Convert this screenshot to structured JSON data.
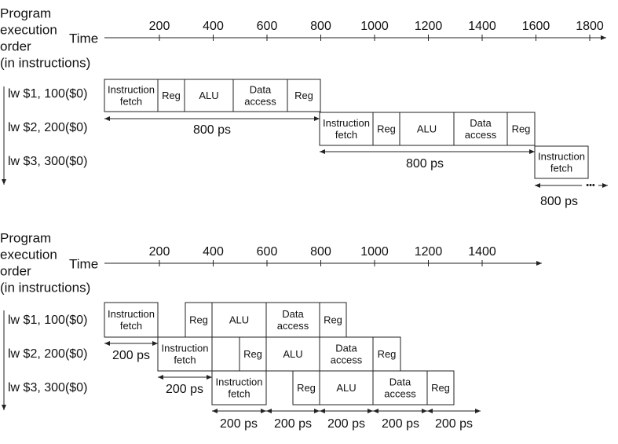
{
  "diagram_top": {
    "header_lines": [
      "Program",
      "execution",
      "order",
      "(in instructions)"
    ],
    "time_label": "Time",
    "tick_labels": [
      "200",
      "400",
      "600",
      "800",
      "1000",
      "1200",
      "1400",
      "1600",
      "1800"
    ],
    "instructions": [
      "lw  $1, 100($0)",
      "lw  $2, 200($0)",
      "lw  $3, 300($0)"
    ],
    "stage_labels": {
      "if": "Instruction fetch",
      "reg": "Reg",
      "alu": "ALU",
      "mem": "Data access",
      "wb": "Reg"
    },
    "interval_label": "800 ps",
    "ellipsis": "•••"
  },
  "diagram_bottom": {
    "header_lines": [
      "Program",
      "execution",
      "order",
      "(in instructions)"
    ],
    "time_label": "Time",
    "tick_labels": [
      "200",
      "400",
      "600",
      "800",
      "1000",
      "1200",
      "1400"
    ],
    "instructions": [
      "lw  $1, 100($0)",
      "lw  $2, 200($0)",
      "lw  $3, 300($0)"
    ],
    "stage_labels": {
      "if": "Instruction fetch",
      "reg": "Reg",
      "alu": "ALU",
      "mem": "Data access",
      "wb": "Reg"
    },
    "interval_label": "200 ps"
  }
}
